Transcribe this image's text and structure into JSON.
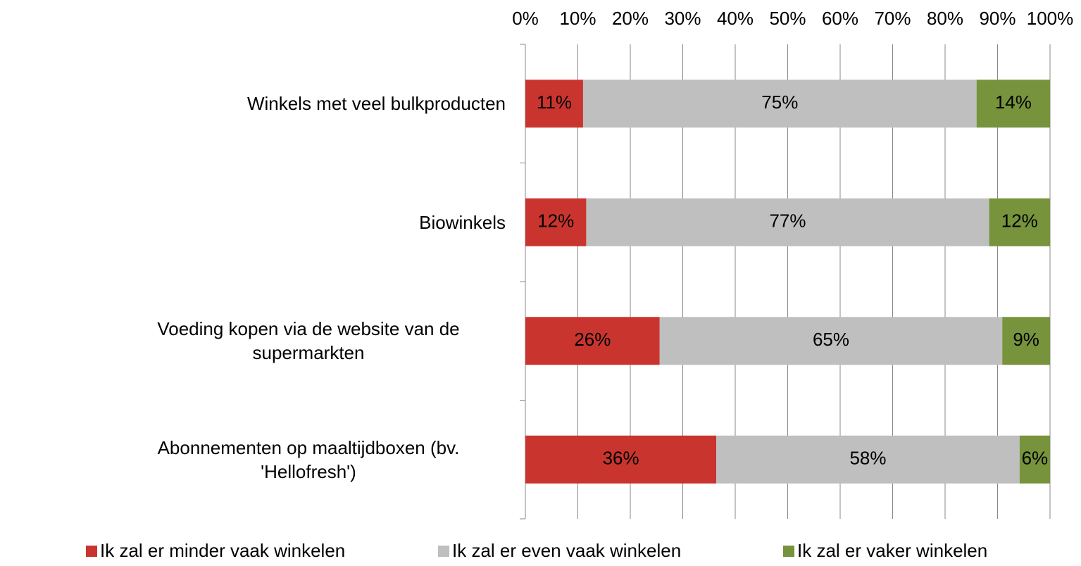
{
  "chart_data": {
    "type": "stacked-bar-horizontal",
    "categories": [
      "Winkels met veel bulkproducten",
      "Biowinkels",
      "Voeding kopen via de website van de supermarkten",
      "Abonnementen op maaltijdboxen (bv. 'Hellofresh')"
    ],
    "series": [
      {
        "name": "Ik zal er minder vaak winkelen",
        "color": "#c9352e",
        "values": [
          11,
          11.6,
          25.6,
          36.4
        ],
        "value_labels": [
          "11%",
          "12%",
          "26%",
          "36%"
        ]
      },
      {
        "name": "Ik zal er even vaak winkelen",
        "color": "#bfbfbf",
        "values": [
          75,
          76.8,
          65.3,
          57.8
        ],
        "value_labels": [
          "75%",
          "77%",
          "65%",
          "58%"
        ]
      },
      {
        "name": "Ik zal er vaker winkelen",
        "color": "#77933c",
        "values": [
          14,
          11.6,
          9.1,
          5.8
        ],
        "value_labels": [
          "14%",
          "12%",
          "9%",
          "6%"
        ]
      }
    ],
    "xlim": [
      0,
      100
    ],
    "xticks": [
      {
        "value": 0,
        "label": "0%"
      },
      {
        "value": 10,
        "label": "10%"
      },
      {
        "value": 20,
        "label": "20%"
      },
      {
        "value": 30,
        "label": "30%"
      },
      {
        "value": 40,
        "label": "40%"
      },
      {
        "value": 50,
        "label": "50%"
      },
      {
        "value": 60,
        "label": "60%"
      },
      {
        "value": 70,
        "label": "70%"
      },
      {
        "value": 80,
        "label": "80%"
      },
      {
        "value": 90,
        "label": "90%"
      },
      {
        "value": 100,
        "label": "100%"
      }
    ],
    "grid": true,
    "legend": "bottom"
  }
}
